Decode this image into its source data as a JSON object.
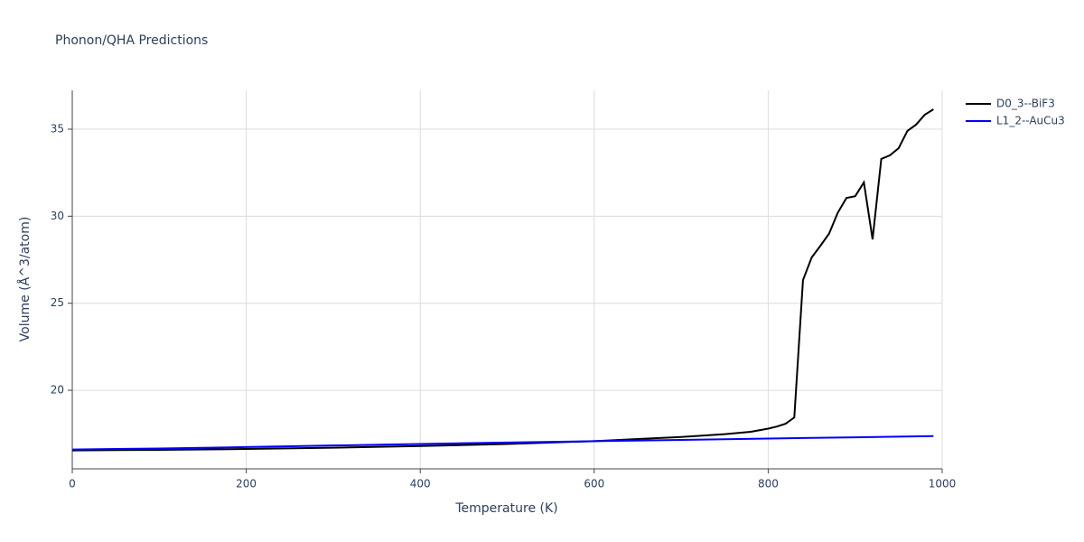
{
  "chart_data": {
    "type": "line",
    "title": "Phonon/QHA Predictions",
    "x_label": "Temperature (K)",
    "y_label": "Volume (Å^3/atom)",
    "xlim": [
      0,
      1000
    ],
    "ylim": [
      15.49,
      37.23
    ],
    "xticks": [
      0,
      200,
      400,
      600,
      800,
      1000
    ],
    "yticks": [
      20,
      25,
      30,
      35
    ],
    "grid": true,
    "series": [
      {
        "name": "D0_3--BiF3",
        "color": "#000000",
        "x": [
          0,
          100,
          200,
          300,
          400,
          500,
          600,
          650,
          700,
          750,
          780,
          800,
          810,
          820,
          830,
          840,
          850,
          860,
          870,
          880,
          890,
          900,
          910,
          920,
          930,
          940,
          950,
          960,
          970,
          980,
          990
        ],
        "values": [
          16.55,
          16.58,
          16.63,
          16.7,
          16.8,
          16.92,
          17.08,
          17.2,
          17.32,
          17.48,
          17.62,
          17.8,
          17.92,
          18.08,
          18.44,
          26.33,
          27.63,
          28.3,
          29.0,
          30.2,
          31.05,
          31.15,
          31.94,
          28.67,
          33.29,
          33.5,
          33.91,
          34.9,
          35.26,
          35.83,
          36.14
        ]
      },
      {
        "name": "L1_2--AuCu3",
        "color": "#0000ff",
        "x": [
          0,
          100,
          200,
          300,
          400,
          500,
          600,
          700,
          800,
          900,
          990
        ],
        "values": [
          16.6,
          16.66,
          16.74,
          16.83,
          16.92,
          17.0,
          17.08,
          17.15,
          17.23,
          17.3,
          17.37
        ]
      }
    ]
  }
}
